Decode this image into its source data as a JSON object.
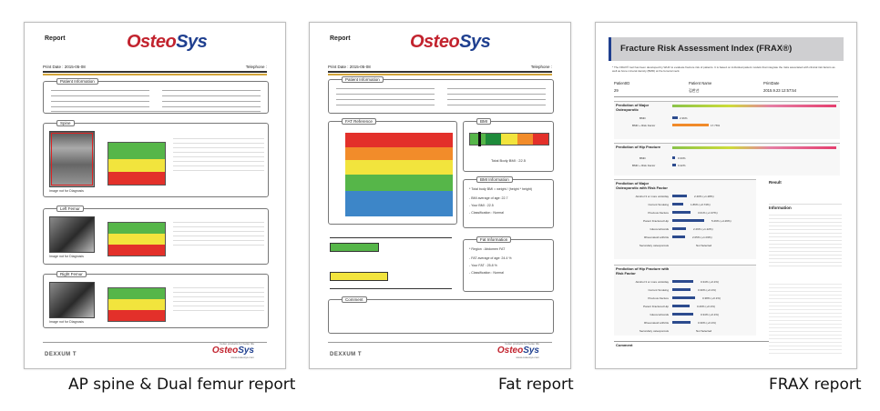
{
  "captions": {
    "spine": "AP spine & Dual femur report",
    "fat": "Fat report",
    "frax": "FRAX report"
  },
  "report": {
    "label": "Report",
    "logo_a": "Osteo",
    "logo_b": "Sys",
    "print_date_1": "Print Date : 2015-05-08",
    "print_date_2": "Print Date : 2015-05-08",
    "telephone": "Telephone :",
    "footer_brand": "DEXXUM T",
    "footer_slogan": "better products for better life",
    "footer_url": "www.osteosys.com"
  },
  "spine_report": {
    "patient_info": "Patient Information",
    "spine": "Spine",
    "left_femur": "Left Femur",
    "right_femur": "Right Femur",
    "not_for_diag": "Image not for Diagnosis"
  },
  "fat_report": {
    "patient_info": "Patient Information",
    "fat_reference": "FAT Reference",
    "bmi": "BMI",
    "bmi_info": "BMI Information",
    "fat_info": "Fat Information",
    "comment": "Comment",
    "total_bmi": "Total Body BMI : 22.5",
    "bmi_formula": "* Total body BMI = weight / (height * height)",
    "bmi_avg": "- BMI average of age: 22.7",
    "bmi_your": "- Your BMI : 22.5",
    "bmi_class": "- Classification : Normal",
    "region": "* Region : Abdomen FAT",
    "fat_avg": "- FAT average of age: 24.4 %",
    "fat_your": "- Your FAT : 25.8 %",
    "fat_class": "- Classification : Normal"
  },
  "frax_report": {
    "title": "Fracture Risk Assessment Index (FRAX®)",
    "note": "* The FRAX® tool has been developed by WHO to evaluate fracture risk of patients. It is based on individual patient models that integrate the risks associated with clinical risk factors as well as bone mineral density (BMD) at the femoral neck.",
    "col_patient_id": "PatientID",
    "col_patient_name": "Patient Name",
    "col_print_date": "PrintDate",
    "patient_id": "29",
    "patient_name": "김한선",
    "print_date": "2015.9.23 12:57:54",
    "sec_major": "Prediction of Major Osteoporotic",
    "sec_hip": "Prediction of Hip Fracture",
    "sec_major_rf": "Prediction of Major Osteoporotic with Risk Factor",
    "sec_hip_rf": "Prediction of Hip Fracture with Risk Factor",
    "bmd": "BMD",
    "bmd_rf": "BMD + Risk Factor",
    "v_major_bmd": "2.36%",
    "v_major_rf": "17.76%",
    "v_hip_bmd": "0.33%",
    "v_hip_rf": "0.42%",
    "result": "Result",
    "information": "Information",
    "comment": "Comment",
    "risk_factors": [
      "Alcohol 3 or more units/day",
      "Current Smoking",
      "Previous fracture",
      "Parent Fractured Hip",
      "Glucocorticoids",
      "Rheumatoid arthritis",
      "Secondary osteoporosis"
    ],
    "major_rf_values": [
      "2.40% (+1.28%)",
      "1.86% (+0.74%)",
      "3.01% (+1.97%)",
      "5.29% (+4.26%)",
      "2.29% (+1.22%)",
      "2.05% (+1.03%)",
      "Not Selected"
    ],
    "hip_rf_values": [
      "0.34% (+0.1%)",
      "0.30% (+0.1%)",
      "0.38% (+0.1%)",
      "0.29% (+0.1%)",
      "0.34% (+0.1%)",
      "0.30% (+0.1%)",
      "Not Selected"
    ]
  },
  "colors": {
    "logo_red": "#c2232e",
    "logo_blue": "#1f3f8f",
    "zone_green": "#56b649",
    "zone_yellow": "#f2e43d",
    "zone_red": "#e3302a"
  }
}
